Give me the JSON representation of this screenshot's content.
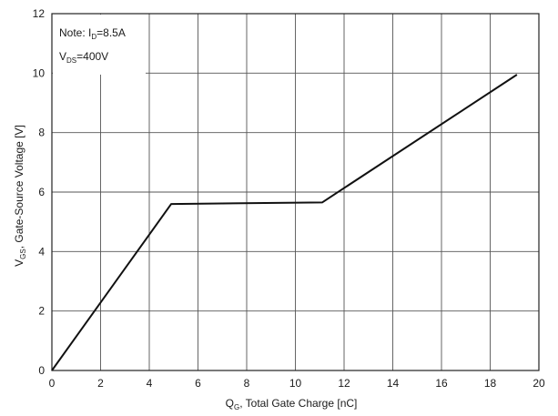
{
  "chart_data": {
    "type": "line",
    "title": "",
    "xlabel": {
      "main": "Q",
      "sub": "G",
      "rest": ", Total Gate Charge [nC]"
    },
    "ylabel": {
      "main": "V",
      "sub": "GS",
      "rest": ", Gate-Source Voltage [V]"
    },
    "xlim": [
      0,
      20
    ],
    "ylim": [
      0,
      12
    ],
    "xticks": [
      0,
      2,
      4,
      6,
      8,
      10,
      12,
      14,
      16,
      18,
      20
    ],
    "yticks": [
      0,
      2,
      4,
      6,
      8,
      10,
      12
    ],
    "grid": true,
    "legend": "none",
    "annotations": [
      {
        "main": "Note: I",
        "sub": "D",
        "rest": "=8.5A"
      },
      {
        "main": "V",
        "sub": "DS",
        "rest": "=400V"
      }
    ],
    "series": [
      {
        "color": "#111111",
        "x": [
          0,
          4.9,
          11.1,
          19.1
        ],
        "y": [
          0,
          5.6,
          5.65,
          9.95
        ]
      }
    ]
  }
}
